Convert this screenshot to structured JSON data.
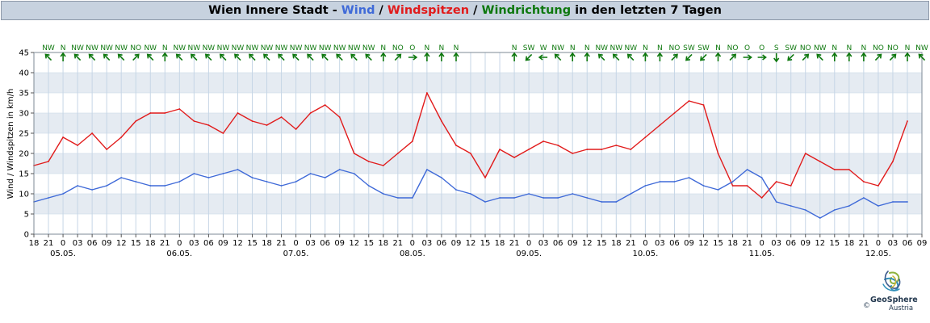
{
  "title": {
    "prefix": "Wien Innere Stadt - ",
    "wind": "Wind",
    "sep1": " / ",
    "gusts": "Windspitzen",
    "sep2": " / ",
    "direction": "Windrichtung",
    "suffix": " in den letzten 7 Tagen"
  },
  "colors": {
    "wind": "#3f6ad8",
    "gusts": "#e11b1b",
    "direction": "#0e780e",
    "band": "#e5ebf2",
    "grid": "#c6d6e6",
    "title_bg": "#c7d2df"
  },
  "logo": {
    "name": "GeoSphere",
    "sub": "Austria",
    "copyright": "©"
  },
  "chart_data": {
    "type": "line",
    "ylabel": "Wind / Windspitzen in km/h",
    "ylim": [
      0,
      45
    ],
    "yticks": [
      "0",
      "5",
      "10",
      "15",
      "20",
      "25",
      "30",
      "35",
      "40",
      "45"
    ],
    "x_start": "2024-05-04 18:00",
    "x_end": "2024-05-12 09:00",
    "x_step_hours": 3,
    "x_tick_labels": [
      "18",
      "21",
      "0",
      "03",
      "06",
      "09",
      "12",
      "15",
      "18",
      "21",
      "0",
      "03",
      "06",
      "09",
      "12",
      "15",
      "18",
      "21",
      "0",
      "03",
      "06",
      "09",
      "12",
      "15",
      "18",
      "21",
      "0",
      "03",
      "06",
      "09",
      "12",
      "15",
      "18",
      "21",
      "0",
      "03",
      "06",
      "09",
      "12",
      "15",
      "18",
      "21",
      "0",
      "03",
      "06",
      "09",
      "12",
      "15",
      "18",
      "21",
      "0",
      "03",
      "06",
      "09",
      "12",
      "15",
      "18",
      "21",
      "0",
      "03",
      "06",
      "09"
    ],
    "dates": [
      {
        "label": "05.05.",
        "at": "2024-05-05 00:00"
      },
      {
        "label": "06.05.",
        "at": "2024-05-06 00:00"
      },
      {
        "label": "07.05.",
        "at": "2024-05-07 00:00"
      },
      {
        "label": "08.05.",
        "at": "2024-05-08 00:00"
      },
      {
        "label": "09.05.",
        "at": "2024-05-09 00:00"
      },
      {
        "label": "10.05.",
        "at": "2024-05-10 00:00"
      },
      {
        "label": "11.05.",
        "at": "2024-05-11 00:00"
      },
      {
        "label": "12.05.",
        "at": "2024-05-12 00:00"
      }
    ],
    "series": [
      {
        "name": "Wind",
        "color": "#3f6ad8",
        "x": [
          "2024-05-04 18:00",
          "2024-05-04 21:00",
          "2024-05-05 00:00",
          "2024-05-05 03:00",
          "2024-05-05 06:00",
          "2024-05-05 09:00",
          "2024-05-05 12:00",
          "2024-05-05 15:00",
          "2024-05-05 18:00",
          "2024-05-05 21:00",
          "2024-05-06 00:00",
          "2024-05-06 03:00",
          "2024-05-06 06:00",
          "2024-05-06 09:00",
          "2024-05-06 12:00",
          "2024-05-06 15:00",
          "2024-05-06 18:00",
          "2024-05-06 21:00",
          "2024-05-07 00:00",
          "2024-05-07 03:00",
          "2024-05-07 06:00",
          "2024-05-07 09:00",
          "2024-05-07 12:00",
          "2024-05-07 15:00",
          "2024-05-07 18:00",
          "2024-05-07 21:00",
          "2024-05-08 00:00",
          "2024-05-08 03:00",
          "2024-05-08 06:00",
          "2024-05-08 09:00",
          "2024-05-08 12:00",
          "2024-05-08 15:00",
          "2024-05-08 18:00",
          "2024-05-08 21:00",
          "2024-05-09 00:00",
          "2024-05-09 03:00",
          "2024-05-09 06:00",
          "2024-05-09 09:00",
          "2024-05-09 12:00",
          "2024-05-09 15:00",
          "2024-05-09 18:00",
          "2024-05-09 21:00",
          "2024-05-10 00:00",
          "2024-05-10 03:00",
          "2024-05-10 06:00",
          "2024-05-10 09:00",
          "2024-05-10 12:00",
          "2024-05-10 15:00",
          "2024-05-10 18:00",
          "2024-05-10 21:00",
          "2024-05-11 00:00",
          "2024-05-11 03:00",
          "2024-05-11 06:00",
          "2024-05-11 09:00",
          "2024-05-11 12:00",
          "2024-05-11 15:00",
          "2024-05-11 18:00",
          "2024-05-11 21:00",
          "2024-05-12 00:00",
          "2024-05-12 03:00",
          "2024-05-12 06:00"
        ],
        "values": [
          8,
          9,
          10,
          12,
          11,
          12,
          14,
          13,
          12,
          12,
          13,
          15,
          14,
          15,
          16,
          14,
          13,
          12,
          13,
          15,
          14,
          16,
          15,
          12,
          10,
          9,
          9,
          16,
          14,
          11,
          10,
          8,
          9,
          9,
          10,
          9,
          9,
          10,
          9,
          8,
          8,
          10,
          12,
          13,
          13,
          14,
          12,
          11,
          13,
          16,
          14,
          8,
          7,
          6,
          4,
          6,
          7,
          9,
          7,
          8,
          8
        ]
      },
      {
        "name": "Windspitzen",
        "color": "#e11b1b",
        "x": [
          "2024-05-04 18:00",
          "2024-05-04 21:00",
          "2024-05-05 00:00",
          "2024-05-05 03:00",
          "2024-05-05 06:00",
          "2024-05-05 09:00",
          "2024-05-05 12:00",
          "2024-05-05 15:00",
          "2024-05-05 18:00",
          "2024-05-05 21:00",
          "2024-05-06 00:00",
          "2024-05-06 03:00",
          "2024-05-06 06:00",
          "2024-05-06 09:00",
          "2024-05-06 12:00",
          "2024-05-06 15:00",
          "2024-05-06 18:00",
          "2024-05-06 21:00",
          "2024-05-07 00:00",
          "2024-05-07 03:00",
          "2024-05-07 06:00",
          "2024-05-07 09:00",
          "2024-05-07 12:00",
          "2024-05-07 15:00",
          "2024-05-07 18:00",
          "2024-05-07 21:00",
          "2024-05-08 00:00",
          "2024-05-08 03:00",
          "2024-05-08 06:00",
          "2024-05-08 09:00",
          "2024-05-08 12:00",
          "2024-05-08 15:00",
          "2024-05-08 18:00",
          "2024-05-08 21:00",
          "2024-05-09 00:00",
          "2024-05-09 03:00",
          "2024-05-09 06:00",
          "2024-05-09 09:00",
          "2024-05-09 12:00",
          "2024-05-09 15:00",
          "2024-05-09 18:00",
          "2024-05-09 21:00",
          "2024-05-10 00:00",
          "2024-05-10 03:00",
          "2024-05-10 06:00",
          "2024-05-10 09:00",
          "2024-05-10 12:00",
          "2024-05-10 15:00",
          "2024-05-10 18:00",
          "2024-05-10 21:00",
          "2024-05-11 00:00",
          "2024-05-11 03:00",
          "2024-05-11 06:00",
          "2024-05-11 09:00",
          "2024-05-11 12:00",
          "2024-05-11 15:00",
          "2024-05-11 18:00",
          "2024-05-11 21:00",
          "2024-05-12 00:00",
          "2024-05-12 03:00",
          "2024-05-12 06:00"
        ],
        "values": [
          17,
          18,
          24,
          22,
          25,
          21,
          24,
          28,
          30,
          30,
          31,
          28,
          27,
          25,
          30,
          28,
          27,
          29,
          26,
          30,
          32,
          29,
          20,
          18,
          17,
          20,
          23,
          35,
          28,
          22,
          20,
          14,
          21,
          19,
          21,
          23,
          22,
          20,
          21,
          21,
          22,
          21,
          24,
          27,
          30,
          33,
          32,
          20,
          12,
          12,
          9,
          13,
          12,
          20,
          18,
          16,
          16,
          13,
          12,
          18,
          28
        ]
      }
    ],
    "direction_labels": [
      {
        "at": "2024-05-04 21:00",
        "text": "NW"
      },
      {
        "at": "2024-05-05 00:00",
        "text": "N"
      },
      {
        "at": "2024-05-05 03:00",
        "text": "NW"
      },
      {
        "at": "2024-05-05 06:00",
        "text": "NW"
      },
      {
        "at": "2024-05-05 09:00",
        "text": "NW"
      },
      {
        "at": "2024-05-05 12:00",
        "text": "NW"
      },
      {
        "at": "2024-05-05 15:00",
        "text": "NO"
      },
      {
        "at": "2024-05-05 18:00",
        "text": "NW"
      },
      {
        "at": "2024-05-05 21:00",
        "text": "N"
      },
      {
        "at": "2024-05-06 00:00",
        "text": "NW"
      },
      {
        "at": "2024-05-06 03:00",
        "text": "NW"
      },
      {
        "at": "2024-05-06 06:00",
        "text": "NW"
      },
      {
        "at": "2024-05-06 09:00",
        "text": "NW"
      },
      {
        "at": "2024-05-06 12:00",
        "text": "NW"
      },
      {
        "at": "2024-05-06 15:00",
        "text": "NW"
      },
      {
        "at": "2024-05-06 18:00",
        "text": "NW"
      },
      {
        "at": "2024-05-06 21:00",
        "text": "NW"
      },
      {
        "at": "2024-05-07 00:00",
        "text": "NW"
      },
      {
        "at": "2024-05-07 03:00",
        "text": "NW"
      },
      {
        "at": "2024-05-07 06:00",
        "text": "NW"
      },
      {
        "at": "2024-05-07 09:00",
        "text": "NW"
      },
      {
        "at": "2024-05-07 12:00",
        "text": "NW"
      },
      {
        "at": "2024-05-07 15:00",
        "text": "NW"
      },
      {
        "at": "2024-05-07 18:00",
        "text": "N"
      },
      {
        "at": "2024-05-07 21:00",
        "text": "NO"
      },
      {
        "at": "2024-05-08 00:00",
        "text": "O"
      },
      {
        "at": "2024-05-08 03:00",
        "text": "N"
      },
      {
        "at": "2024-05-08 06:00",
        "text": "N"
      },
      {
        "at": "2024-05-08 09:00",
        "text": "N"
      },
      {
        "at": "2024-05-08 21:00",
        "text": "N"
      },
      {
        "at": "2024-05-09 00:00",
        "text": "SW"
      },
      {
        "at": "2024-05-09 03:00",
        "text": "W"
      },
      {
        "at": "2024-05-09 06:00",
        "text": "NW"
      },
      {
        "at": "2024-05-09 09:00",
        "text": "N"
      },
      {
        "at": "2024-05-09 12:00",
        "text": "N"
      },
      {
        "at": "2024-05-09 15:00",
        "text": "NW"
      },
      {
        "at": "2024-05-09 18:00",
        "text": "NW"
      },
      {
        "at": "2024-05-09 21:00",
        "text": "NW"
      },
      {
        "at": "2024-05-10 00:00",
        "text": "N"
      },
      {
        "at": "2024-05-10 03:00",
        "text": "N"
      },
      {
        "at": "2024-05-10 06:00",
        "text": "NO"
      },
      {
        "at": "2024-05-10 09:00",
        "text": "SW"
      },
      {
        "at": "2024-05-10 12:00",
        "text": "SW"
      },
      {
        "at": "2024-05-10 15:00",
        "text": "N"
      },
      {
        "at": "2024-05-10 18:00",
        "text": "NO"
      },
      {
        "at": "2024-05-10 21:00",
        "text": "O"
      },
      {
        "at": "2024-05-11 00:00",
        "text": "O"
      },
      {
        "at": "2024-05-11 03:00",
        "text": "S"
      },
      {
        "at": "2024-05-11 06:00",
        "text": "SW"
      },
      {
        "at": "2024-05-11 09:00",
        "text": "NO"
      },
      {
        "at": "2024-05-11 12:00",
        "text": "NW"
      },
      {
        "at": "2024-05-11 15:00",
        "text": "N"
      },
      {
        "at": "2024-05-11 18:00",
        "text": "N"
      },
      {
        "at": "2024-05-11 21:00",
        "text": "N"
      },
      {
        "at": "2024-05-12 00:00",
        "text": "NO"
      },
      {
        "at": "2024-05-12 03:00",
        "text": "NO"
      },
      {
        "at": "2024-05-12 06:00",
        "text": "N"
      },
      {
        "at": "2024-05-12 09:00",
        "text": "NW"
      }
    ],
    "grid": true
  }
}
